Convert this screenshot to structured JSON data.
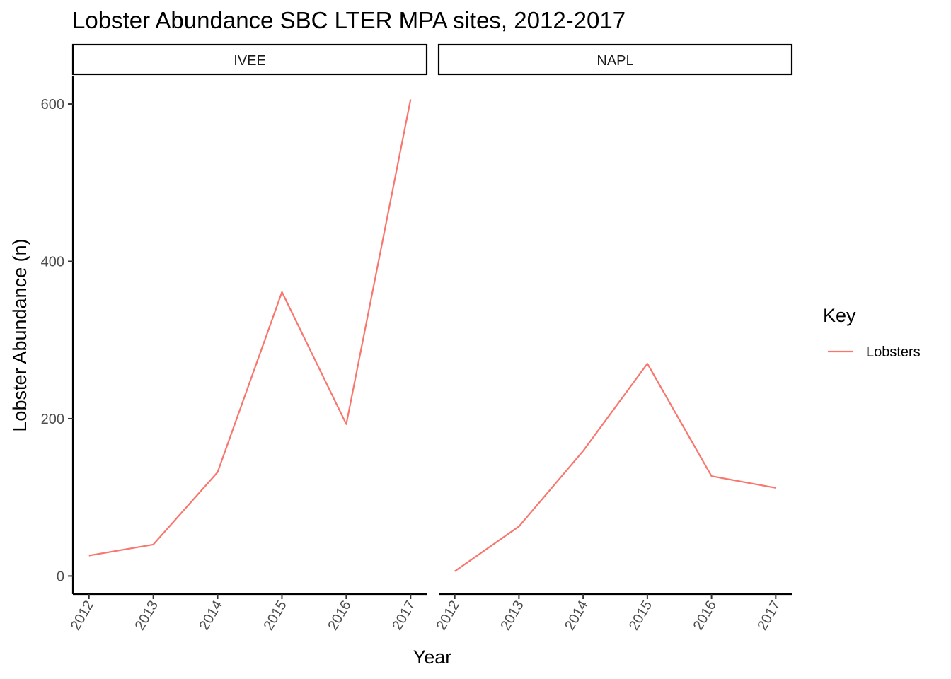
{
  "chart_data": {
    "type": "line",
    "title": "Lobster Abundance SBC LTER MPA sites, 2012-2017",
    "xlabel": "Year",
    "ylabel": "Lobster Abundance (n)",
    "x": [
      "2012",
      "2013",
      "2014",
      "2015",
      "2016",
      "2017"
    ],
    "y_ticks": [
      "0",
      "200",
      "400",
      "600"
    ],
    "ylim": [
      -23,
      636
    ],
    "grid": false,
    "legend": {
      "title": "Key",
      "position": "right",
      "entries": [
        {
          "label": "Lobsters",
          "color": "#F8766D"
        }
      ]
    },
    "panels": [
      {
        "name": "IVEE",
        "series": [
          {
            "name": "Lobsters",
            "values": [
              26,
              40,
              132,
              361,
              193,
              606
            ]
          }
        ]
      },
      {
        "name": "NAPL",
        "series": [
          {
            "name": "Lobsters",
            "values": [
              6,
              63,
              159,
              270,
              127,
              112
            ]
          }
        ]
      }
    ],
    "colors": {
      "line": "#F8766D",
      "axis": "#000000",
      "tick_text": "#4d4d4d"
    }
  }
}
